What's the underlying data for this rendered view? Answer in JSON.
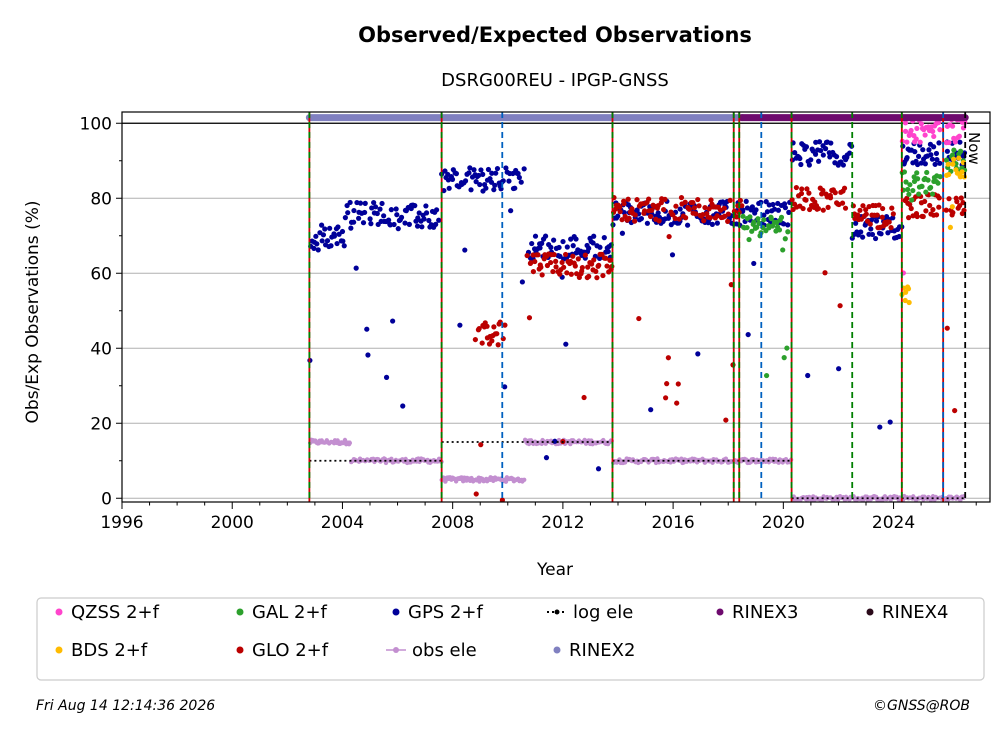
{
  "chart_data": {
    "type": "scatter",
    "title": "Observed/Expected Observations",
    "subtitle": "DSRG00REU - IPGP-GNSS",
    "xlabel": "Year",
    "ylabel": "Obs/Exp Observations (%)",
    "xlim": [
      1996.0,
      2027.5
    ],
    "ylim": [
      -1,
      103
    ],
    "x_ticks": [
      1996,
      2000,
      2004,
      2008,
      2012,
      2016,
      2020,
      2024
    ],
    "y_ticks": [
      0,
      20,
      40,
      60,
      80,
      100
    ],
    "grid": true,
    "now_label": "Now",
    "now_x": 2026.6,
    "footer_left": "Fri Aug 14 12:14:36 2026",
    "footer_right": "©GNSS@ROB",
    "colors": {
      "QZSS": "#ff44cc",
      "BDS": "#ffbb00",
      "GAL": "#2ca02c",
      "GLO": "#bb0000",
      "GPS": "#000099",
      "obs_ele": "#c38fd0",
      "log_ele": "#000000",
      "RINEX2": "#8080c0",
      "RINEX3": "#6e0a6e",
      "RINEX4": "#2a0a1a",
      "event_red": "#cc0000",
      "event_green": "#008000",
      "event_blue": "#0060c0",
      "event_black": "#000000"
    },
    "legend": [
      {
        "label": "QZSS 2+f",
        "key": "QZSS",
        "kind": "dot"
      },
      {
        "label": "GAL 2+f",
        "key": "GAL",
        "kind": "dot"
      },
      {
        "label": "GPS 2+f",
        "key": "GPS",
        "kind": "dot"
      },
      {
        "label": "log ele",
        "key": "log_ele",
        "kind": "dotted"
      },
      {
        "label": "RINEX3",
        "key": "RINEX3",
        "kind": "dot"
      },
      {
        "label": "RINEX4",
        "key": "RINEX4",
        "kind": "dot"
      },
      {
        "label": "BDS 2+f",
        "key": "BDS",
        "kind": "dot"
      },
      {
        "label": "GLO 2+f",
        "key": "GLO",
        "kind": "dot"
      },
      {
        "label": "obs ele",
        "key": "obs_ele",
        "kind": "line"
      },
      {
        "label": "RINEX2",
        "key": "RINEX2",
        "kind": "dot"
      }
    ],
    "event_lines": [
      {
        "x": 2002.8,
        "style": "red-green"
      },
      {
        "x": 2007.6,
        "style": "red-green"
      },
      {
        "x": 2009.8,
        "style": "blue"
      },
      {
        "x": 2013.8,
        "style": "red-green"
      },
      {
        "x": 2018.2,
        "style": "red-green"
      },
      {
        "x": 2018.4,
        "style": "red-green"
      },
      {
        "x": 2019.2,
        "style": "blue"
      },
      {
        "x": 2020.3,
        "style": "red-green"
      },
      {
        "x": 2022.5,
        "style": "green"
      },
      {
        "x": 2024.3,
        "style": "red-green"
      },
      {
        "x": 2025.8,
        "style": "blue-red"
      },
      {
        "x": 2026.6,
        "style": "black"
      }
    ],
    "rinex_bars": [
      {
        "key": "RINEX2",
        "x0": 2002.8,
        "x1": 2018.5,
        "y": 101.5
      },
      {
        "key": "RINEX3",
        "x0": 2018.5,
        "x1": 2026.6,
        "y": 101.5
      }
    ],
    "series": [
      {
        "name": "GPS 2+f",
        "key": "GPS",
        "segments": [
          {
            "x0": 2002.8,
            "x1": 2003.2,
            "y": 68
          },
          {
            "x0": 2003.2,
            "x1": 2004.1,
            "y": 70
          },
          {
            "x0": 2004.1,
            "x1": 2006.0,
            "y": 76
          },
          {
            "x0": 2006.0,
            "x1": 2007.5,
            "y": 75
          },
          {
            "x0": 2007.6,
            "x1": 2010.6,
            "y": 85
          },
          {
            "x0": 2010.7,
            "x1": 2013.8,
            "y": 67
          },
          {
            "x0": 2013.8,
            "x1": 2020.3,
            "y": 76
          },
          {
            "x0": 2020.3,
            "x1": 2022.5,
            "y": 92
          },
          {
            "x0": 2022.5,
            "x1": 2024.3,
            "y": 72
          },
          {
            "x0": 2024.3,
            "x1": 2025.7,
            "y": 92
          },
          {
            "x0": 2025.9,
            "x1": 2026.6,
            "y": 92
          }
        ]
      },
      {
        "name": "GLO 2+f",
        "key": "GLO",
        "segments": [
          {
            "x0": 2008.8,
            "x1": 2009.9,
            "y": 44
          },
          {
            "x0": 2010.7,
            "x1": 2013.8,
            "y": 62
          },
          {
            "x0": 2013.8,
            "x1": 2018.5,
            "y": 77
          },
          {
            "x0": 2020.3,
            "x1": 2022.3,
            "y": 80
          },
          {
            "x0": 2022.5,
            "x1": 2024.0,
            "y": 75
          },
          {
            "x0": 2024.4,
            "x1": 2025.7,
            "y": 78
          },
          {
            "x0": 2025.9,
            "x1": 2026.6,
            "y": 78
          }
        ]
      },
      {
        "name": "GAL 2+f",
        "key": "GAL",
        "segments": [
          {
            "x0": 2018.5,
            "x1": 2020.2,
            "y": 72
          },
          {
            "x0": 2024.3,
            "x1": 2025.7,
            "y": 84
          },
          {
            "x0": 2025.9,
            "x1": 2026.6,
            "y": 90
          }
        ]
      },
      {
        "name": "BDS 2+f",
        "key": "BDS",
        "segments": [
          {
            "x0": 2024.3,
            "x1": 2024.6,
            "y": 55
          },
          {
            "x0": 2025.9,
            "x1": 2026.6,
            "y": 88
          }
        ]
      },
      {
        "name": "QZSS 2+f",
        "key": "QZSS",
        "segments": [
          {
            "x0": 2024.3,
            "x1": 2025.7,
            "y": 98
          },
          {
            "x0": 2025.9,
            "x1": 2026.6,
            "y": 98
          }
        ]
      },
      {
        "name": "obs ele",
        "key": "obs_ele",
        "segments": [
          {
            "x0": 2002.8,
            "x1": 2004.3,
            "y": 15
          },
          {
            "x0": 2004.3,
            "x1": 2007.6,
            "y": 10
          },
          {
            "x0": 2007.6,
            "x1": 2010.6,
            "y": 5
          },
          {
            "x0": 2010.6,
            "x1": 2013.8,
            "y": 15
          },
          {
            "x0": 2013.8,
            "x1": 2020.3,
            "y": 10
          },
          {
            "x0": 2020.3,
            "x1": 2026.6,
            "y": 0
          }
        ]
      },
      {
        "name": "log ele",
        "key": "log_ele",
        "segments": [
          {
            "x0": 2002.8,
            "x1": 2007.6,
            "y": 10
          },
          {
            "x0": 2007.6,
            "x1": 2013.8,
            "y": 15
          },
          {
            "x0": 2013.8,
            "x1": 2020.3,
            "y": 10
          },
          {
            "x0": 2020.3,
            "x1": 2026.6,
            "y": 0
          }
        ]
      }
    ]
  }
}
